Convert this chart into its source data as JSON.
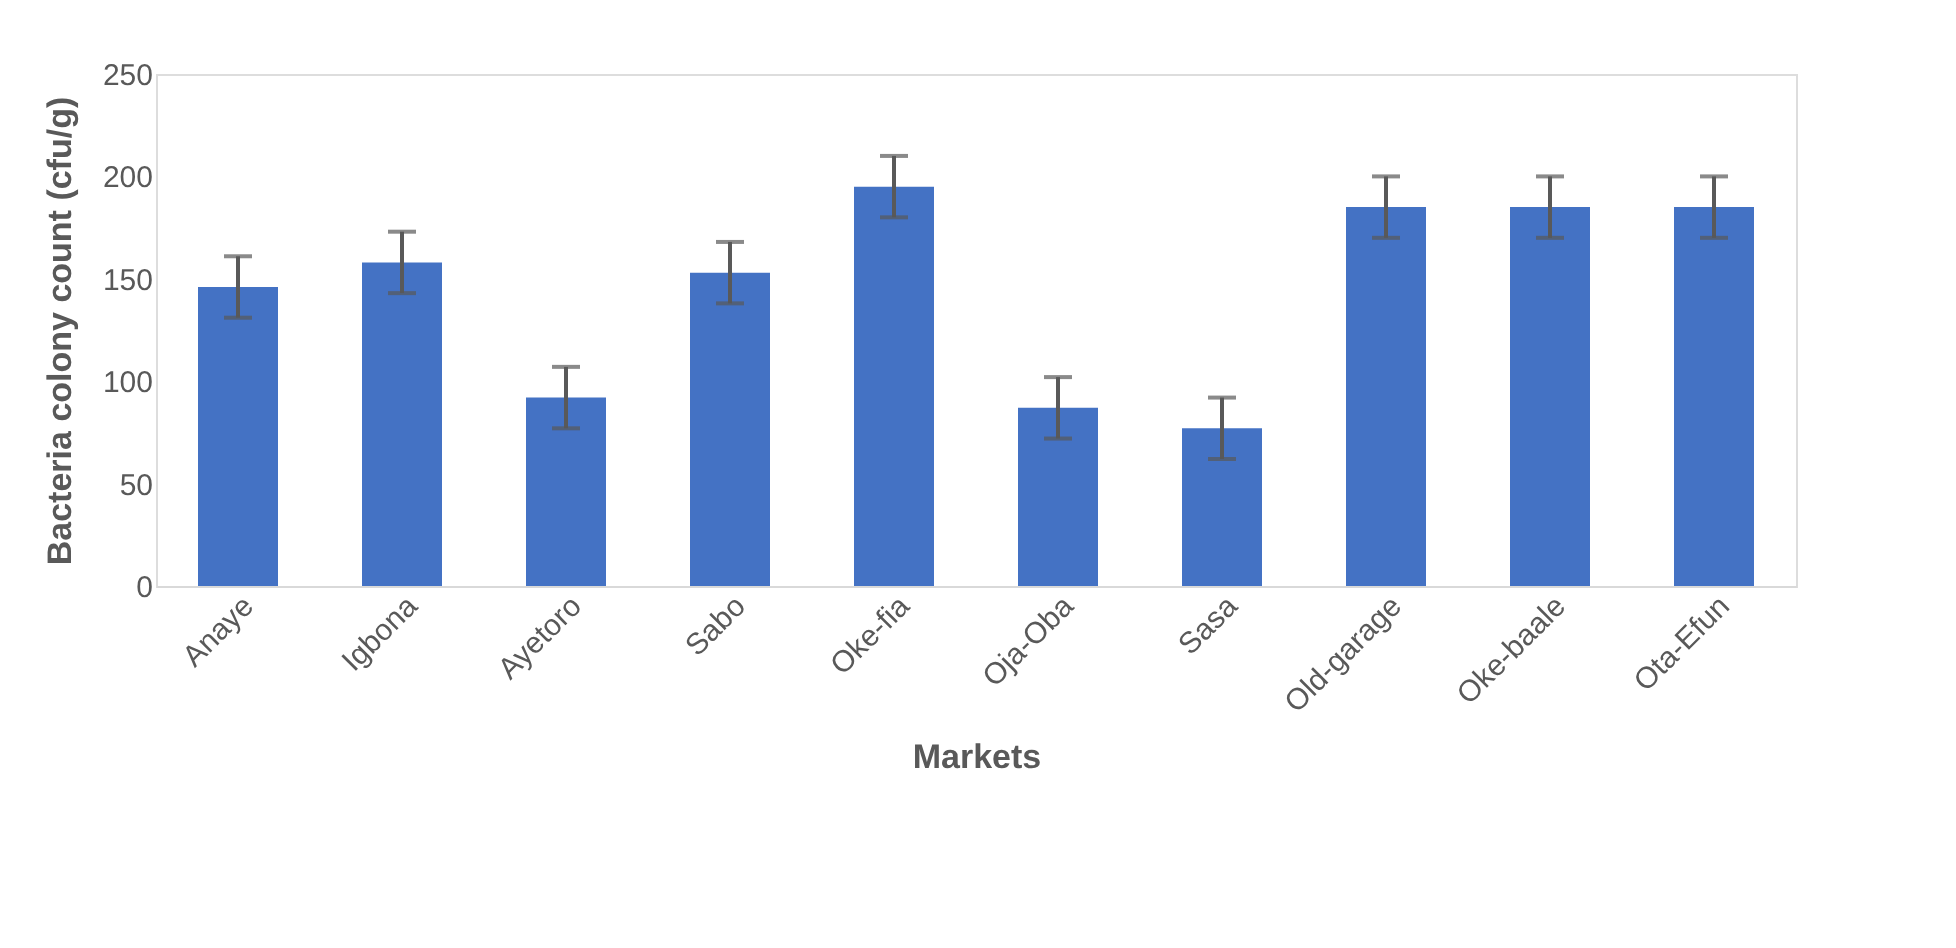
{
  "chart_data": {
    "type": "bar",
    "xlabel": "Markets",
    "ylabel": "Bacteria colony count (cfu/g)",
    "categories": [
      "Anaye",
      "Igbona",
      "Ayetoro",
      "Sabo",
      "Oke-fia",
      "Oja-Oba",
      "Sasa",
      "Old-garage",
      "Oke-baale",
      "Ota-Efun"
    ],
    "values": [
      146,
      158,
      92,
      153,
      195,
      87,
      77,
      185,
      185,
      185
    ],
    "errors": [
      15,
      15,
      15,
      15,
      15,
      15,
      15,
      15,
      15,
      15
    ],
    "color": "#4472c4",
    "ylim": [
      0,
      250
    ],
    "yticks": [
      0,
      50,
      100,
      150,
      200,
      250
    ],
    "grid": false
  }
}
